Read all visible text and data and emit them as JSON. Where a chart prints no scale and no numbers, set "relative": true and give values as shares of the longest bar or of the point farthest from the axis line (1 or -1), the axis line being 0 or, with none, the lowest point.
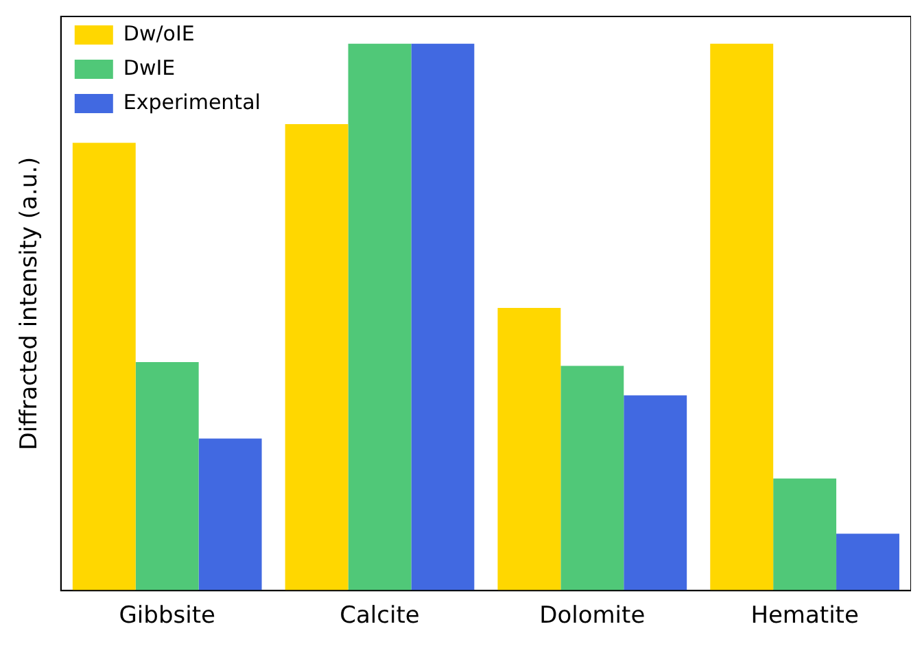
{
  "chart_data": {
    "type": "bar",
    "ylabel": "Diffracted intensity (a.u.)",
    "relative": true,
    "categories": [
      "Gibbsite",
      "Calcite",
      "Dolomite",
      "Hematite"
    ],
    "series": [
      {
        "name": "Dw/oIE",
        "color": "#ffd700",
        "values": [
          0.819,
          0.853,
          0.517,
          1
        ]
      },
      {
        "name": "DwIE",
        "color": "#50c878",
        "values": [
          0.418,
          1,
          0.411,
          0.205
        ]
      },
      {
        "name": "Experimental",
        "color": "#4169e1",
        "values": [
          0.278,
          1,
          0.357,
          0.104
        ]
      }
    ],
    "legend": "top left",
    "grid": false
  }
}
